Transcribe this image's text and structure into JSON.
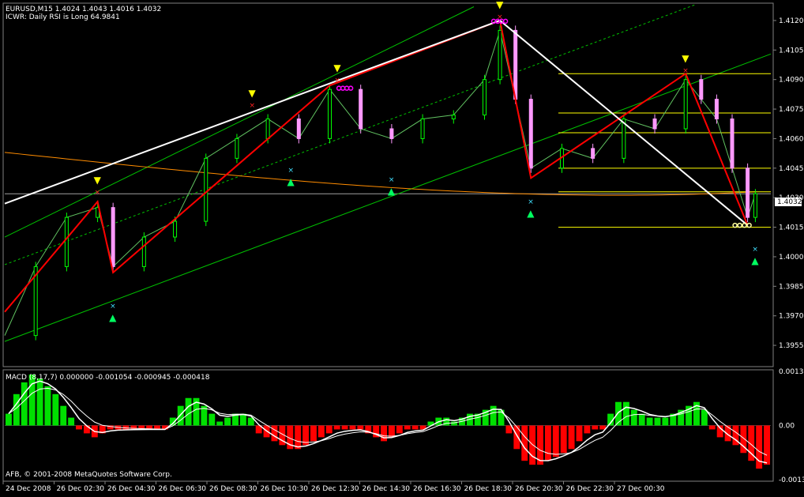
{
  "chart_data": [
    {
      "type": "line",
      "title": "EURUSD,M15  1.4024 1.4043 1.4016 1.4032",
      "subtitle": "ICWR: Daily RSI is Long 64.9841",
      "current_price_label": "1.4032",
      "current_price": 1.4032,
      "ylim": [
        1.3945,
        1.4128
      ],
      "y_ticks": [
        "1.4120",
        "1.4105",
        "1.4090",
        "1.4075",
        "1.4060",
        "1.4045",
        "1.4030",
        "1.4015",
        "1.4000",
        "1.3985",
        "1.3970",
        "1.3955"
      ],
      "x_ticks": [
        "24 Dec 2008",
        "26 Dec 02:30",
        "26 Dec 04:30",
        "26 Dec 06:30",
        "26 Dec 08:30",
        "26 Dec 10:30",
        "26 Dec 12:30",
        "26 Dec 14:30",
        "26 Dec 16:30",
        "26 Dec 18:30",
        "26 Dec 20:30",
        "26 Dec 22:30",
        "27 Dec 00:30"
      ],
      "series": [
        {
          "style": "zigzag-red",
          "points": [
            [
              0,
              1.3972
            ],
            [
              12,
              1.4028
            ],
            [
              14,
              1.3992
            ],
            [
              42,
              1.4087
            ],
            [
              64,
              1.412
            ],
            [
              68,
              1.404
            ],
            [
              88,
              1.4093
            ],
            [
              96,
              1.4016
            ]
          ]
        },
        {
          "style": "zigzag-white",
          "points": [
            [
              0,
              1.4027
            ],
            [
              64,
              1.412
            ],
            [
              96,
              1.4016
            ]
          ]
        },
        {
          "style": "close-line",
          "points": [
            [
              0,
              1.396
            ],
            [
              4,
              1.3995
            ],
            [
              8,
              1.402
            ],
            [
              12,
              1.4025
            ],
            [
              14,
              1.3995
            ],
            [
              18,
              1.401
            ],
            [
              22,
              1.4018
            ],
            [
              26,
              1.405
            ],
            [
              30,
              1.406
            ],
            [
              34,
              1.407
            ],
            [
              38,
              1.406
            ],
            [
              42,
              1.4085
            ],
            [
              46,
              1.4065
            ],
            [
              50,
              1.406
            ],
            [
              54,
              1.407
            ],
            [
              58,
              1.4072
            ],
            [
              62,
              1.409
            ],
            [
              64,
              1.4115
            ],
            [
              66,
              1.408
            ],
            [
              68,
              1.4045
            ],
            [
              72,
              1.4055
            ],
            [
              76,
              1.405
            ],
            [
              80,
              1.407
            ],
            [
              84,
              1.4065
            ],
            [
              88,
              1.409
            ],
            [
              90,
              1.408
            ],
            [
              92,
              1.407
            ],
            [
              94,
              1.4045
            ],
            [
              96,
              1.402
            ],
            [
              97,
              1.4032
            ]
          ]
        }
      ],
      "signals": {
        "peaks": [
          12,
          32,
          43,
          64,
          88
        ],
        "troughs": [
          14,
          37,
          50,
          68,
          97
        ]
      }
    },
    {
      "type": "bar",
      "title": "MACD (8,17,7) 0.000000 -0.001054 -0.000945 -0.000418",
      "ylim": [
        -0.00138,
        0.00138
      ],
      "y_ticks": [
        "0.00138",
        "0.00",
        "-0.00138"
      ],
      "series": [
        {
          "name": "histogram",
          "values": [
            0.0003,
            0.0008,
            0.0011,
            0.0013,
            0.0012,
            0.001,
            0.0008,
            0.0005,
            0.0002,
            -0.0001,
            -0.0002,
            -0.0003,
            -0.0002,
            -0.0001,
            -0.0001,
            -0.0001,
            -0.0001,
            -0.0001,
            -0.0001,
            -0.0001,
            -0.0001,
            0.0002,
            0.0005,
            0.0007,
            0.0007,
            0.0005,
            0.0003,
            0.0001,
            0.0002,
            0.0003,
            0.0003,
            0.0002,
            -0.0002,
            -0.0003,
            -0.0004,
            -0.0005,
            -0.0006,
            -0.0006,
            -0.0005,
            -0.0004,
            -0.0003,
            -0.0002,
            -0.0001,
            -0.0001,
            -0.0001,
            -0.0001,
            -0.0002,
            -0.0003,
            -0.0004,
            -0.0003,
            -0.0002,
            -0.0001,
            -0.0001,
            -0.0001,
            0.0001,
            0.0002,
            0.0002,
            0.0001,
            0.0002,
            0.0003,
            0.0003,
            0.0004,
            0.0005,
            0.0004,
            -0.0002,
            -0.0006,
            -0.0009,
            -0.001,
            -0.001,
            -0.0009,
            -0.0008,
            -0.0007,
            -0.0006,
            -0.0004,
            -0.0002,
            -0.0001,
            -0.0001,
            0.0003,
            0.0006,
            0.0006,
            0.0004,
            0.0003,
            0.0002,
            0.0002,
            0.0002,
            0.0003,
            0.0004,
            0.0005,
            0.0006,
            0.0004,
            -0.0001,
            -0.0003,
            -0.0004,
            -0.0005,
            -0.0007,
            -0.0009,
            -0.0011,
            -0.001
          ]
        }
      ]
    }
  ],
  "footer": "AFB, © 2001-2008 MetaQuotes Software Corp.",
  "colors": {
    "background": "#000000",
    "grid_line": "#808080",
    "text": "#ffffff",
    "bull_candle": "#00ff00",
    "bear_candle": "#ff99ff",
    "zigzag_red": "#ff0000",
    "zigzag_white": "#ffffff",
    "channel": "#00c000",
    "moving_average": "#ff8c00",
    "level_line": "#ffff00",
    "macd_up": "#00e000",
    "macd_down": "#ff0000",
    "peak_arrow": "#ffff00",
    "trough_arrow": "#00ff60",
    "marker_x_red": "#ff2020",
    "marker_x_cyan": "#40e0ff",
    "marker_circle_magenta": "#ff00ff"
  }
}
